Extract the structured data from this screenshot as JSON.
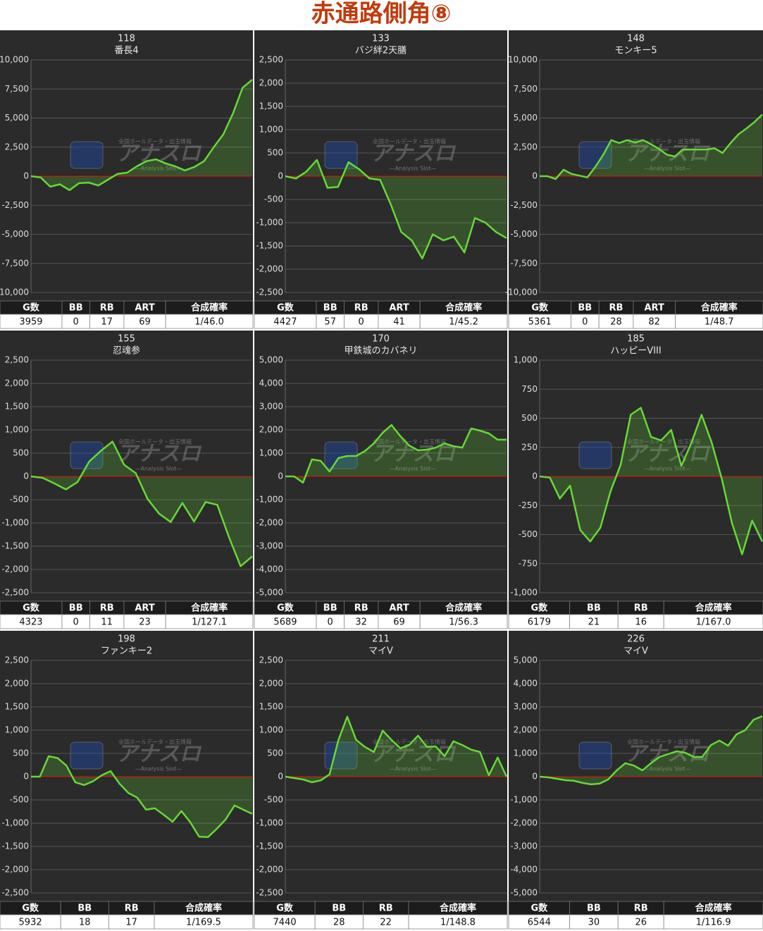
{
  "title": "赤通路側角⑧",
  "watermark": {
    "caption": "全国ホールデータ・出玉情報",
    "logo": "アナスロ",
    "tagline": "—Analysis Slot—"
  },
  "chart_data": [
    {
      "type": "line",
      "title": "118",
      "subtitle": "番長4",
      "color": "#66d936",
      "baseline_color": "#d40000",
      "grid": true,
      "ylim": [
        -10000,
        10000
      ],
      "yticks": [
        {
          "value": -10000,
          "label": "-10,000"
        },
        {
          "value": -7500,
          "label": "-7,500"
        },
        {
          "value": -5000,
          "label": "-5,000"
        },
        {
          "value": -2500,
          "label": "-2,500"
        },
        0,
        {
          "value": 2500,
          "label": "2,500"
        },
        {
          "value": 5000,
          "label": "5,000"
        },
        {
          "value": 7500,
          "label": "7,500"
        },
        {
          "value": 10000,
          "label": "10,000"
        }
      ],
      "values": [
        0,
        -100,
        -900,
        -700,
        -1200,
        -600,
        -550,
        -800,
        -300,
        200,
        300,
        850,
        1300,
        1450,
        1100,
        850,
        500,
        800,
        1300,
        2500,
        3600,
        5400,
        7600,
        8300
      ],
      "table": {
        "columns": [
          "G数",
          "BB",
          "RB",
          "ART",
          "合成確率"
        ],
        "rows": [
          [
            3959,
            0,
            17,
            69,
            "1/46.0"
          ]
        ]
      }
    },
    {
      "type": "line",
      "title": "133",
      "subtitle": "バジ絆2天膳",
      "color": "#66d936",
      "baseline_color": "#d40000",
      "grid": true,
      "ylim": [
        -2500,
        2500
      ],
      "yticks": [
        {
          "value": -2500,
          "label": "-2,500"
        },
        {
          "value": -2000,
          "label": "-2,000"
        },
        {
          "value": -1500,
          "label": "-1,500"
        },
        {
          "value": -1000,
          "label": "-1,000"
        },
        -500,
        0,
        500,
        {
          "value": 1000,
          "label": "1,000"
        },
        {
          "value": 1500,
          "label": "1,500"
        },
        {
          "value": 2000,
          "label": "2,000"
        },
        {
          "value": 2500,
          "label": "2,500"
        }
      ],
      "values": [
        0,
        -50,
        100,
        350,
        -250,
        -230,
        300,
        150,
        -50,
        -80,
        -600,
        -1200,
        -1380,
        -1770,
        -1250,
        -1380,
        -1300,
        -1640,
        -900,
        -1000,
        -1200,
        -1330
      ],
      "table": {
        "columns": [
          "G数",
          "BB",
          "RB",
          "ART",
          "合成確率"
        ],
        "rows": [
          [
            4427,
            57,
            0,
            41,
            "1/45.2"
          ]
        ]
      }
    },
    {
      "type": "line",
      "title": "148",
      "subtitle": "モンキー5",
      "color": "#66d936",
      "baseline_color": "#d40000",
      "grid": true,
      "ylim": [
        -10000,
        10000
      ],
      "yticks": [
        {
          "value": -10000,
          "label": "-10,000"
        },
        {
          "value": -7500,
          "label": "-7,500"
        },
        {
          "value": -5000,
          "label": "-5,000"
        },
        {
          "value": -2500,
          "label": "-2,500"
        },
        0,
        {
          "value": 2500,
          "label": "2,500"
        },
        {
          "value": 5000,
          "label": "5,000"
        },
        {
          "value": 7500,
          "label": "7,500"
        },
        {
          "value": 10000,
          "label": "10,000"
        }
      ],
      "values": [
        0,
        0,
        -250,
        550,
        200,
        50,
        -100,
        800,
        1850,
        3100,
        2850,
        3100,
        2900,
        3100,
        2750,
        2350,
        1850,
        1700,
        2300,
        2300,
        2300,
        2300,
        2400,
        2000,
        2850,
        3600,
        4100,
        4650,
        5300
      ],
      "table": {
        "columns": [
          "G数",
          "BB",
          "RB",
          "ART",
          "合成確率"
        ],
        "rows": [
          [
            5361,
            0,
            28,
            82,
            "1/48.7"
          ]
        ]
      }
    },
    {
      "type": "line",
      "title": "155",
      "subtitle": "忍魂参",
      "color": "#66d936",
      "baseline_color": "#d40000",
      "grid": true,
      "ylim": [
        -2500,
        2500
      ],
      "yticks": [
        {
          "value": -2500,
          "label": "-2,500"
        },
        {
          "value": -2000,
          "label": "-2,000"
        },
        {
          "value": -1500,
          "label": "-1,500"
        },
        {
          "value": -1000,
          "label": "-1,000"
        },
        -500,
        0,
        500,
        {
          "value": 1000,
          "label": "1,000"
        },
        {
          "value": 1500,
          "label": "1,500"
        },
        {
          "value": 2000,
          "label": "2,000"
        },
        {
          "value": 2500,
          "label": "2,500"
        }
      ],
      "values": [
        0,
        -30,
        -150,
        -280,
        -120,
        320,
        550,
        750,
        250,
        70,
        -480,
        -800,
        -980,
        -570,
        -970,
        -550,
        -610,
        -1300,
        -1930,
        -1720
      ],
      "table": {
        "columns": [
          "G数",
          "BB",
          "RB",
          "ART",
          "合成確率"
        ],
        "rows": [
          [
            4323,
            0,
            11,
            23,
            "1/127.1"
          ]
        ]
      }
    },
    {
      "type": "line",
      "title": "170",
      "subtitle": "甲鉄城のカバネリ",
      "color": "#66d936",
      "baseline_color": "#d40000",
      "grid": true,
      "ylim": [
        -5000,
        5000
      ],
      "yticks": [
        {
          "value": -5000,
          "label": "-5,000"
        },
        {
          "value": -4000,
          "label": "-4,000"
        },
        {
          "value": -3000,
          "label": "-3,000"
        },
        {
          "value": -2000,
          "label": "-2,000"
        },
        {
          "value": -1000,
          "label": "-1,000"
        },
        0,
        {
          "value": 1000,
          "label": "1,000"
        },
        {
          "value": 2000,
          "label": "2,000"
        },
        {
          "value": 3000,
          "label": "3,000"
        },
        {
          "value": 4000,
          "label": "4,000"
        },
        {
          "value": 5000,
          "label": "5,000"
        }
      ],
      "values": [
        0,
        0,
        -270,
        730,
        670,
        210,
        790,
        880,
        880,
        1090,
        1420,
        1880,
        2210,
        1730,
        1330,
        1120,
        1150,
        1240,
        1420,
        1300,
        1240,
        2060,
        1970,
        1850,
        1580,
        1580
      ],
      "table": {
        "columns": [
          "G数",
          "BB",
          "RB",
          "ART",
          "合成確率"
        ],
        "rows": [
          [
            5689,
            0,
            32,
            69,
            "1/56.3"
          ]
        ]
      }
    },
    {
      "type": "line",
      "title": "185",
      "subtitle": "ハッピーVIII",
      "color": "#66d936",
      "baseline_color": "#d40000",
      "grid": true,
      "ylim": [
        -1000,
        1000
      ],
      "yticks": [
        {
          "value": -1000,
          "label": "-1,000"
        },
        -750,
        -500,
        -250,
        0,
        250,
        500,
        750,
        {
          "value": 1000,
          "label": "1,000"
        }
      ],
      "values": [
        0,
        -10,
        -190,
        -80,
        -460,
        -560,
        -440,
        -130,
        100,
        530,
        590,
        340,
        310,
        400,
        90,
        290,
        530,
        290,
        -20,
        -400,
        -670,
        -380,
        -560
      ],
      "table": {
        "columns": [
          "G数",
          "BB",
          "RB",
          "合成確率"
        ],
        "rows": [
          [
            6179,
            21,
            16,
            "1/167.0"
          ]
        ]
      }
    },
    {
      "type": "line",
      "title": "198",
      "subtitle": "ファンキー2",
      "color": "#66d936",
      "baseline_color": "#d40000",
      "grid": true,
      "ylim": [
        -2500,
        2500
      ],
      "yticks": [
        {
          "value": -2500,
          "label": "-2,500"
        },
        {
          "value": -2000,
          "label": "-2,000"
        },
        {
          "value": -1500,
          "label": "-1,500"
        },
        {
          "value": -1000,
          "label": "-1,000"
        },
        -500,
        0,
        500,
        {
          "value": 1000,
          "label": "1,000"
        },
        {
          "value": 1500,
          "label": "1,500"
        },
        {
          "value": 2000,
          "label": "2,000"
        },
        {
          "value": 2500,
          "label": "2,500"
        }
      ],
      "values": [
        0,
        0,
        440,
        400,
        240,
        -120,
        -180,
        -100,
        30,
        120,
        -150,
        -350,
        -450,
        -710,
        -680,
        -820,
        -970,
        -740,
        -980,
        -1290,
        -1300,
        -1120,
        -920,
        -620,
        -710,
        -800
      ],
      "table": {
        "columns": [
          "G数",
          "BB",
          "RB",
          "合成確率"
        ],
        "rows": [
          [
            5932,
            18,
            17,
            "1/169.5"
          ]
        ]
      }
    },
    {
      "type": "line",
      "title": "211",
      "subtitle": "マイV",
      "color": "#66d936",
      "baseline_color": "#d40000",
      "grid": true,
      "ylim": [
        -2500,
        2500
      ],
      "yticks": [
        {
          "value": -2500,
          "label": "-2,500"
        },
        {
          "value": -2000,
          "label": "-2,000"
        },
        {
          "value": -1500,
          "label": "-1,500"
        },
        {
          "value": -1000,
          "label": "-1,000"
        },
        -500,
        0,
        500,
        {
          "value": 1000,
          "label": "1,000"
        },
        {
          "value": 1500,
          "label": "1,500"
        },
        {
          "value": 2000,
          "label": "2,000"
        },
        {
          "value": 2500,
          "label": "2,500"
        }
      ],
      "values": [
        0,
        -30,
        -60,
        -120,
        -80,
        50,
        790,
        1290,
        790,
        640,
        530,
        990,
        790,
        610,
        680,
        880,
        640,
        650,
        440,
        760,
        680,
        580,
        530,
        30,
        410,
        0
      ],
      "table": {
        "columns": [
          "G数",
          "BB",
          "RB",
          "合成確率"
        ],
        "rows": [
          [
            7440,
            28,
            22,
            "1/148.8"
          ]
        ]
      }
    },
    {
      "type": "line",
      "title": "226",
      "subtitle": "マイV",
      "color": "#66d936",
      "baseline_color": "#d40000",
      "grid": true,
      "ylim": [
        -5000,
        5000
      ],
      "yticks": [
        {
          "value": -5000,
          "label": "-5,000"
        },
        {
          "value": -4000,
          "label": "-4,000"
        },
        {
          "value": -3000,
          "label": "-3,000"
        },
        {
          "value": -2000,
          "label": "-2,000"
        },
        {
          "value": -1000,
          "label": "-1,000"
        },
        0,
        {
          "value": 1000,
          "label": "1,000"
        },
        {
          "value": 2000,
          "label": "2,000"
        },
        {
          "value": 3000,
          "label": "3,000"
        },
        {
          "value": 4000,
          "label": "4,000"
        },
        {
          "value": 5000,
          "label": "5,000"
        }
      ],
      "values": [
        0,
        -30,
        -90,
        -150,
        -180,
        -270,
        -330,
        -300,
        -120,
        270,
        580,
        480,
        270,
        580,
        850,
        970,
        1090,
        1030,
        850,
        850,
        1360,
        1550,
        1330,
        1820,
        2000,
        2450,
        2600
      ],
      "table": {
        "columns": [
          "G数",
          "BB",
          "RB",
          "合成確率"
        ],
        "rows": [
          [
            6544,
            30,
            26,
            "1/116.9"
          ]
        ]
      }
    }
  ]
}
